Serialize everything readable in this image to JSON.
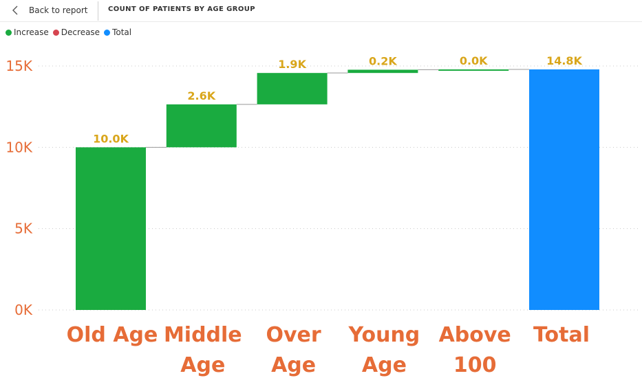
{
  "header": {
    "back_label": "Back to report",
    "title": "COUNT OF PATIENTS BY AGE GROUP"
  },
  "legend": [
    {
      "label": "Increase",
      "color": "#1aab40"
    },
    {
      "label": "Decrease",
      "color": "#d64550"
    },
    {
      "label": "Total",
      "color": "#118dff"
    }
  ],
  "chart_data": {
    "type": "bar",
    "subtype": "waterfall",
    "title": "COUNT OF PATIENTS BY AGE GROUP",
    "categories": [
      "Old Age",
      "Middle Age",
      "Over Age",
      "Young Age",
      "Above 100",
      "Total"
    ],
    "values": [
      10000,
      2640,
      1930,
      200,
      20,
      14790
    ],
    "data_labels": [
      "10.0K",
      "2.6K",
      "1.9K",
      "0.2K",
      "0.0K",
      "14.8K"
    ],
    "kinds": [
      "increase",
      "increase",
      "increase",
      "increase",
      "increase",
      "total"
    ],
    "y_ticks": [
      0,
      5000,
      10000,
      15000
    ],
    "y_tick_labels": [
      "0K",
      "5K",
      "10K",
      "15K"
    ],
    "ylim": [
      0,
      16000
    ],
    "grid": true,
    "legend_position": "top-left",
    "colors": {
      "increase": "#1aab40",
      "decrease": "#d64550",
      "total": "#118dff",
      "data_label": "#d9a61b",
      "axis_text": "#e66c37"
    }
  }
}
